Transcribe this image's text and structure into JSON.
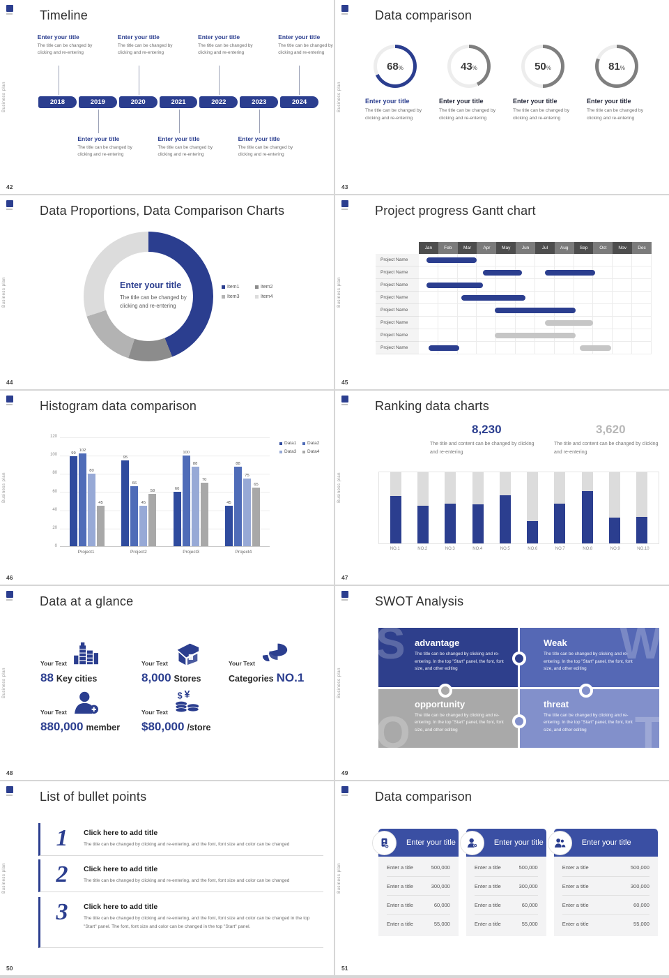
{
  "shared": {
    "side_label": "Business plan",
    "brand_color": "#2b3e8f"
  },
  "slides": {
    "timeline": {
      "page": "42",
      "title": "Timeline",
      "years": [
        "2018",
        "2019",
        "2020",
        "2021",
        "2022",
        "2023",
        "2024"
      ],
      "entry_heading": "Enter your title",
      "entry_body": "The title can be changed by clicking and re-entering",
      "top_positions": [
        0,
        2,
        4,
        6
      ],
      "bottom_positions": [
        1,
        3,
        5
      ]
    },
    "rings": {
      "page": "43",
      "title": "Data comparison",
      "item_heading": "Enter your title",
      "item_body": "The title can be changed by clicking and re-entering",
      "percent_suffix": "%",
      "items": [
        {
          "percent": 68,
          "accent": "#2b3e8f",
          "heading_color": "#2b3e8f"
        },
        {
          "percent": 43,
          "accent": "#7f7f7f",
          "heading_color": "#1f2335"
        },
        {
          "percent": 50,
          "accent": "#7f7f7f",
          "heading_color": "#1f2335"
        },
        {
          "percent": 81,
          "accent": "#7f7f7f",
          "heading_color": "#1f2335"
        }
      ]
    },
    "donut": {
      "page": "44",
      "title": "Data Proportions, Data Comparison Charts",
      "center_heading": "Enter your title",
      "center_body": "The title can be changed by clicking and re-entering",
      "segments": [
        {
          "label": "Item1",
          "value": 44,
          "color": "#2b3e8f"
        },
        {
          "label": "Item2",
          "value": 11,
          "color": "#8c8c8c"
        },
        {
          "label": "Item3",
          "value": 15,
          "color": "#b3b3b3"
        },
        {
          "label": "Item4",
          "value": 30,
          "color": "#dcdcdc"
        }
      ]
    },
    "gantt": {
      "page": "45",
      "title": "Project progress Gantt chart",
      "months": [
        "Jan",
        "Feb",
        "Mar",
        "Apr",
        "May",
        "Jun",
        "Jul",
        "Aug",
        "Sep",
        "Oct",
        "Nov",
        "Dec"
      ],
      "header_colors": [
        "#4d4d4d",
        "#7b7b7b"
      ],
      "row_label": "Project Name",
      "bar_colors": {
        "blue": "#2b3e8f",
        "gray": "#c6c6c6"
      },
      "rows": [
        {
          "bars": [
            {
              "start": 0.4,
              "end": 3.0,
              "color": "blue"
            }
          ]
        },
        {
          "bars": [
            {
              "start": 3.3,
              "end": 5.3,
              "color": "blue"
            },
            {
              "start": 6.5,
              "end": 9.1,
              "color": "blue"
            }
          ]
        },
        {
          "bars": [
            {
              "start": 0.4,
              "end": 3.3,
              "color": "blue"
            }
          ]
        },
        {
          "bars": [
            {
              "start": 2.2,
              "end": 5.5,
              "color": "blue"
            }
          ]
        },
        {
          "bars": [
            {
              "start": 3.9,
              "end": 8.1,
              "color": "blue"
            }
          ]
        },
        {
          "bars": [
            {
              "start": 6.5,
              "end": 9.0,
              "color": "gray"
            }
          ]
        },
        {
          "bars": [
            {
              "start": 3.9,
              "end": 8.1,
              "color": "gray"
            }
          ]
        },
        {
          "bars": [
            {
              "start": 0.5,
              "end": 2.1,
              "color": "blue"
            },
            {
              "start": 8.3,
              "end": 9.9,
              "color": "gray"
            }
          ]
        }
      ]
    },
    "histogram": {
      "page": "46",
      "title": "Histogram data comparison",
      "categories": [
        "Project1",
        "Project2",
        "Project3",
        "Project4"
      ],
      "y_ticks": [
        120,
        100,
        80,
        60,
        40,
        20,
        0
      ],
      "y_max": 120,
      "series": [
        {
          "name": "Data1",
          "color": "#2f4b9e",
          "values": [
            99,
            95,
            60,
            45
          ]
        },
        {
          "name": "Data2",
          "color": "#4f6cb8",
          "values": [
            102,
            66,
            100,
            88
          ]
        },
        {
          "name": "Data3",
          "color": "#97a9d6",
          "values": [
            80,
            45,
            88,
            75
          ]
        },
        {
          "name": "Data4",
          "color": "#a8a8a8",
          "values": [
            45,
            58,
            70,
            65
          ]
        }
      ]
    },
    "ranking": {
      "page": "47",
      "title": "Ranking data charts",
      "stat_primary": {
        "value": "8,230",
        "color": "#2b3e8f",
        "caption": "The title and content can be changed by clicking and re-entering"
      },
      "stat_secondary": {
        "value": "3,620",
        "color": "#b7b7b7",
        "caption": "The title and content can be changed by clicking and re-entering"
      },
      "bars": [
        {
          "label": "NO.1",
          "percent": 67
        },
        {
          "label": "NO.2",
          "percent": 53
        },
        {
          "label": "NO.3",
          "percent": 56
        },
        {
          "label": "NO.4",
          "percent": 55
        },
        {
          "label": "NO.5",
          "percent": 68
        },
        {
          "label": "NO.6",
          "percent": 31
        },
        {
          "label": "NO.7",
          "percent": 56
        },
        {
          "label": "NO.8",
          "percent": 74
        },
        {
          "label": "NO.9",
          "percent": 36
        },
        {
          "label": "NO.10",
          "percent": 37
        }
      ]
    },
    "stats": {
      "page": "48",
      "title": "Data at a glance",
      "items": [
        {
          "label": "Your Text",
          "icon": "city-buildings-icon",
          "parts": [
            {
              "text": "88",
              "style": "accent"
            },
            {
              "text": "Key cities",
              "style": "dark"
            }
          ]
        },
        {
          "label": "Your Text",
          "icon": "store-icon",
          "parts": [
            {
              "text": "8,000",
              "style": "accent"
            },
            {
              "text": "Stores",
              "style": "dark"
            }
          ]
        },
        {
          "label": "Your Text",
          "icon": "pie-chart-icon",
          "parts": [
            {
              "text": "Categories",
              "style": "dark"
            },
            {
              "text": "NO.1",
              "style": "accent"
            }
          ]
        },
        {
          "label": "Your Text",
          "icon": "add-member-icon",
          "parts": [
            {
              "text": "880,000",
              "style": "accent"
            },
            {
              "text": "member",
              "style": "dark"
            }
          ]
        },
        {
          "label": "Your Text",
          "icon": "coins-icon",
          "parts": [
            {
              "text": "$80,000",
              "style": "accent"
            },
            {
              "text": "/store",
              "style": "dark"
            }
          ]
        }
      ]
    },
    "swot": {
      "page": "49",
      "title": "SWOT Analysis",
      "quadrants": [
        {
          "letter": "S",
          "heading": "advantage",
          "bg": "#2e3f8c",
          "body": "The title can be changed by clicking and re-entering. In the top \"Start\" panel, the font, font size, and other editing"
        },
        {
          "letter": "W",
          "heading": "Weak",
          "bg": "#5568b5",
          "body": "The title can be changed by clicking and re-entering. In the top \"Start\" panel, the font, font size, and other editing"
        },
        {
          "letter": "O",
          "heading": "opportunity",
          "bg": "#a9a9a9",
          "body": "The title can be changed by clicking and re-entering. In the top \"Start\" panel, the font, font size, and other editing"
        },
        {
          "letter": "T",
          "heading": "threat",
          "bg": "#8290cb",
          "body": "The title can be changed by clicking and re-entering. In the top \"Start\" panel, the font, font size, and other editing"
        }
      ]
    },
    "bullets": {
      "page": "50",
      "title": "List of bullet points",
      "items": [
        {
          "number": "1",
          "heading": "Click here to add title",
          "body": "The title can be changed by clicking and re-entering, and the font, font size and color can be changed"
        },
        {
          "number": "2",
          "heading": "Click here to add title",
          "body": "The title can be changed by clicking and re-entering, and the font, font size and color can be changed"
        },
        {
          "number": "3",
          "heading": "Click here to add title",
          "body": "The title can be changed by clicking and re-entering, and the font, font size and color can be changed in the top \"Start\" panel. The font, font size and color can be changed in the top \"Start\" panel."
        }
      ]
    },
    "cards": {
      "page": "51",
      "title": "Data comparison",
      "row_label": "Enter a title",
      "values": [
        "500,000",
        "300,000",
        "60,000",
        "55,000"
      ],
      "cards": [
        {
          "icon": "device-add-icon",
          "title": "Enter your title"
        },
        {
          "icon": "person-add-icon",
          "title": "Enter your title"
        },
        {
          "icon": "people-icon",
          "title": "Enter your title"
        }
      ]
    }
  }
}
